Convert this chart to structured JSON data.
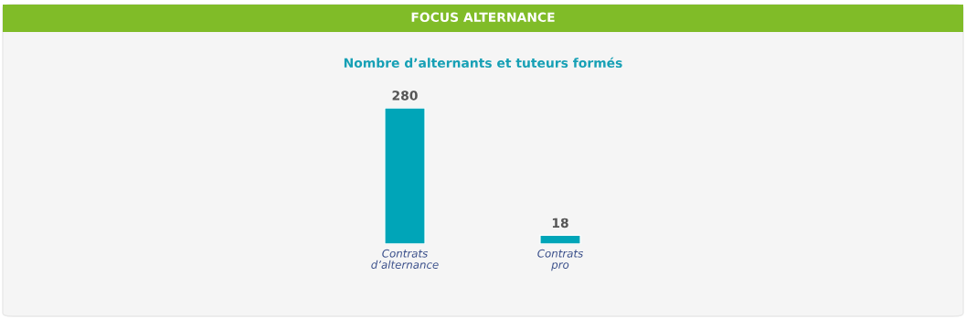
{
  "chart_data": {
    "type": "bar",
    "title": "FOCUS ALTERNANCE",
    "subtitle": "Nombre d’alternants et tuteurs formés",
    "categories": [
      "Contrats\nd’alternance",
      "Contrats\npro"
    ],
    "values": [
      280,
      18
    ],
    "color": "#00a5b8",
    "data_labels": true,
    "grid": false,
    "legend": false
  }
}
